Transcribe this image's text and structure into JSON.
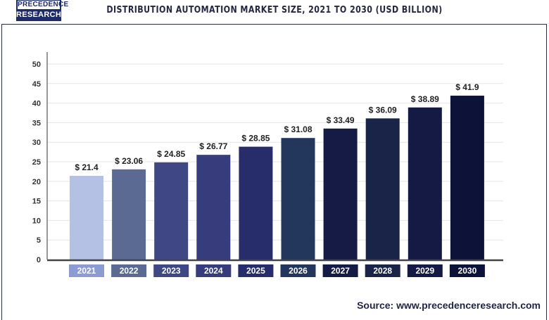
{
  "header": {
    "logo_top": "PRECEDENCE",
    "logo_bottom": "RESEARCH",
    "title": "DISTRIBUTION AUTOMATION MARKET SIZE, 2021 TO 2030 (USD BILLION)"
  },
  "source": "Source: www.precedenceresearch.com",
  "chart_data": {
    "type": "bar",
    "title": "DISTRIBUTION AUTOMATION MARKET SIZE, 2021 TO 2030 (USD BILLION)",
    "categories": [
      "2021",
      "2022",
      "2023",
      "2024",
      "2025",
      "2026",
      "2027",
      "2028",
      "2029",
      "2030"
    ],
    "values": [
      21.4,
      23.06,
      24.85,
      26.77,
      28.85,
      31.08,
      33.49,
      36.09,
      38.89,
      41.9
    ],
    "data_labels": [
      "$ 21.4",
      "$ 23.06",
      "$ 24.85",
      "$ 26.77",
      "$ 28.85",
      "$ 31.08",
      "$ 33.49",
      "$ 36.09",
      "$ 38.89",
      "$ 41.9"
    ],
    "colors": [
      "#b4c0e4",
      "#5a6a93",
      "#3f4885",
      "#363c7c",
      "#272c6a",
      "#23365c",
      "#151b45",
      "#1a2448",
      "#151a44",
      "#0d1238"
    ],
    "yticks": [
      0,
      5,
      10,
      15,
      20,
      25,
      30,
      35,
      40,
      45,
      50
    ],
    "ylim": [
      0,
      50
    ],
    "grid": true,
    "xlabel": "",
    "ylabel": ""
  }
}
